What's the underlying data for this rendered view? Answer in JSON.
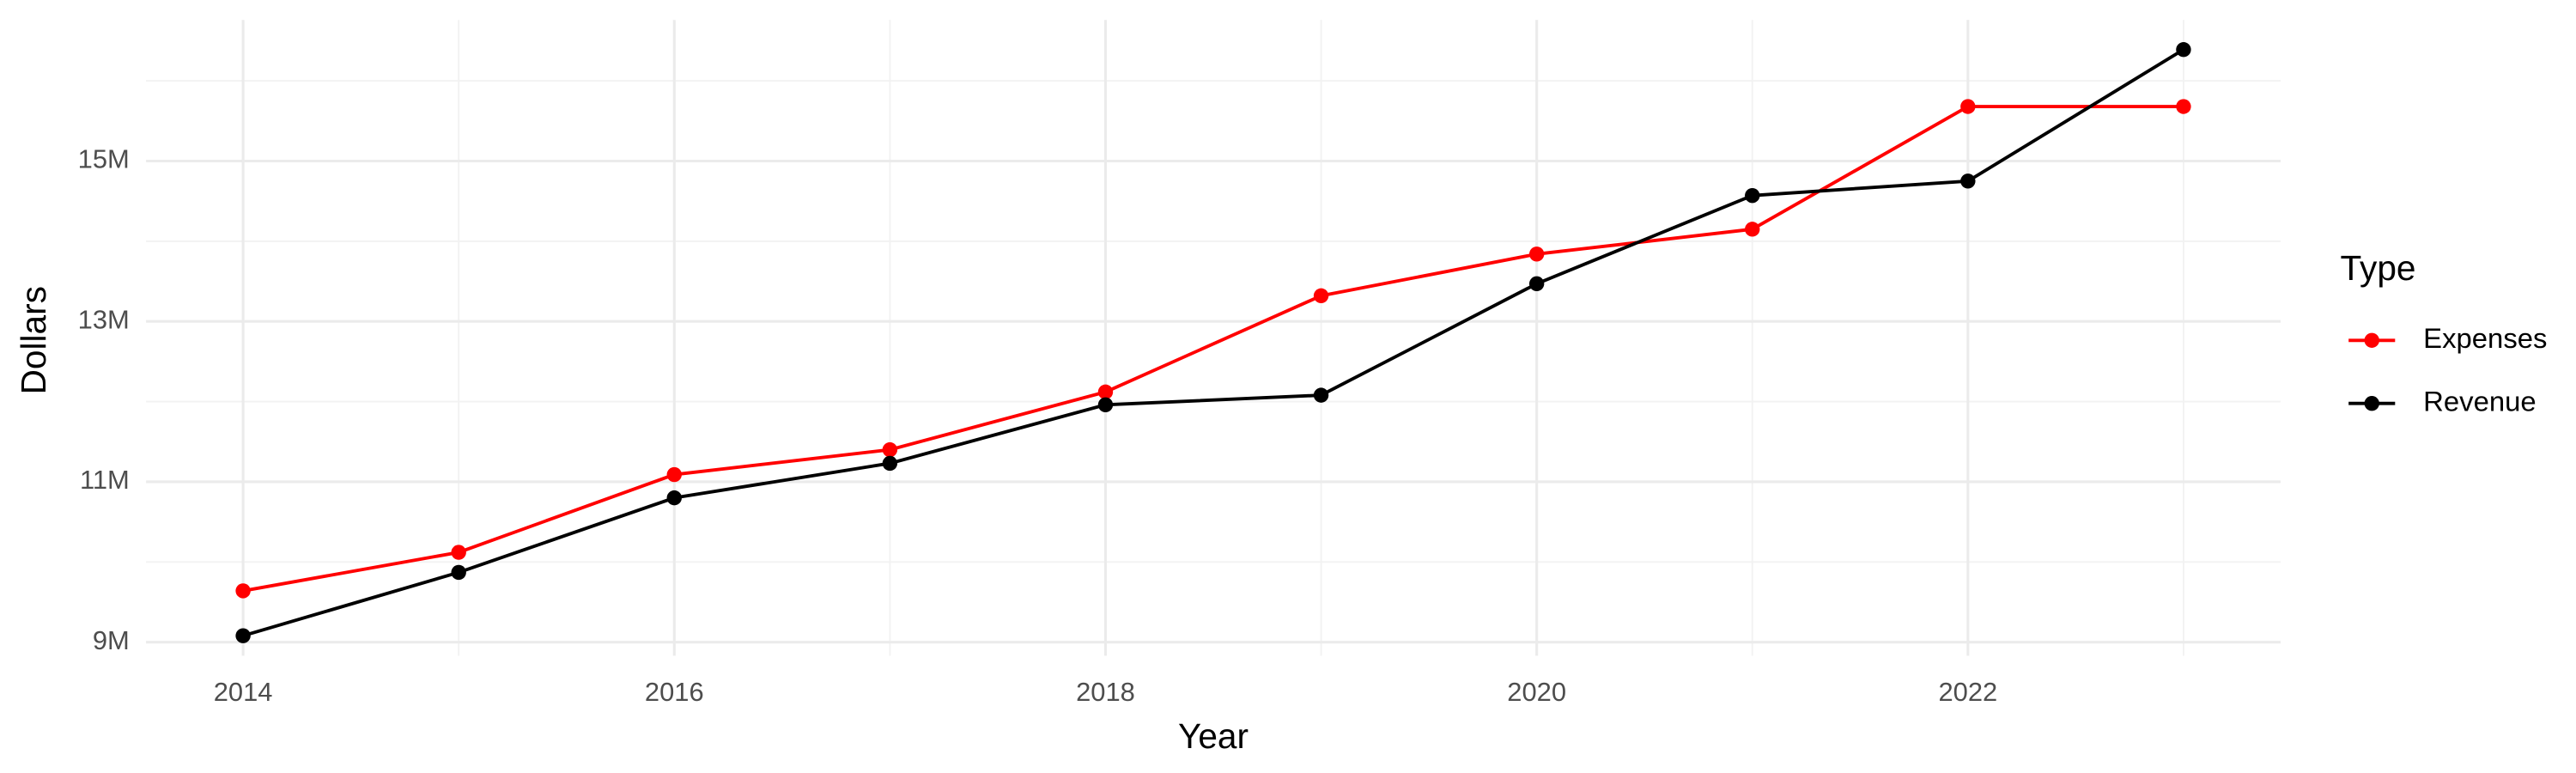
{
  "chart_data": {
    "type": "line",
    "x_label": "Year",
    "y_label": "Dollars",
    "legend_title": "Type",
    "legend": "right",
    "grid": true,
    "x": [
      2014,
      2015,
      2016,
      2017,
      2018,
      2019,
      2020,
      2021,
      2022,
      2023
    ],
    "series": [
      {
        "name": "Expenses",
        "color": "#ff0000",
        "values": [
          9640000,
          10120000,
          11090000,
          11400000,
          12120000,
          13320000,
          13840000,
          14150000,
          15680000,
          15680000
        ]
      },
      {
        "name": "Revenue",
        "color": "#000000",
        "values": [
          9080000,
          9870000,
          10800000,
          11230000,
          11960000,
          12080000,
          13470000,
          14570000,
          14750000,
          16390000
        ]
      }
    ],
    "xlim": [
      2013.55,
      2023.45
    ],
    "xticks": [
      2014,
      2016,
      2018,
      2020,
      2022
    ],
    "ylim": [
      8830000,
      16760000
    ],
    "yticks": [
      {
        "value": 9000000,
        "label": "9M"
      },
      {
        "value": 11000000,
        "label": "11M"
      },
      {
        "value": 13000000,
        "label": "13M"
      },
      {
        "value": 15000000,
        "label": "15M"
      }
    ]
  }
}
